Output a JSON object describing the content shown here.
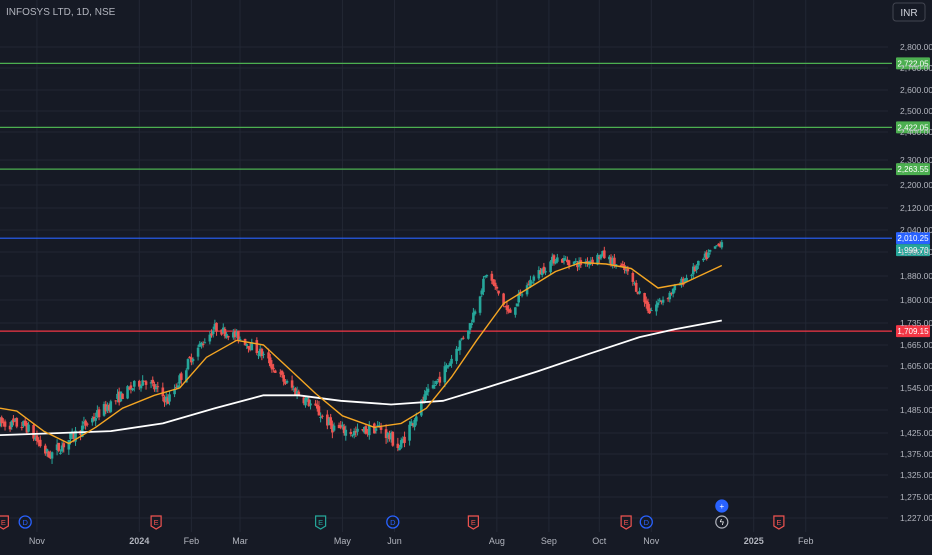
{
  "header": {
    "title": "INFOSYS LTD, 1D, NSE"
  },
  "currency_button": {
    "label": "INR"
  },
  "colors": {
    "background": "#161a25",
    "grid": "#222734",
    "text": "#b2b5be",
    "candle_up": "#26a69a",
    "candle_down": "#ef5350",
    "ma_fast": "#f5a623",
    "ma_slow": "#ffffff",
    "green_line": "#4caf50",
    "blue_line": "#2962ff",
    "red_line": "#f23645",
    "earnings": "#ef5350",
    "dividend": "#2962ff",
    "split": "#26a69a"
  },
  "chart_data": {
    "type": "candlestick",
    "title": "INFOSYS LTD, 1D, NSE",
    "ylim": [
      1200,
      2880
    ],
    "y_ticks": [
      {
        "value": 2800,
        "label": "2,800.00"
      },
      {
        "value": 2700,
        "label": "2,700.00"
      },
      {
        "value": 2600,
        "label": "2,600.00"
      },
      {
        "value": 2500,
        "label": "2,500.00"
      },
      {
        "value": 2400,
        "label": "2,400.00"
      },
      {
        "value": 2300,
        "label": "2,300.00"
      },
      {
        "value": 2200,
        "label": "2,200.00"
      },
      {
        "value": 2120,
        "label": "2,120.00"
      },
      {
        "value": 2040,
        "label": "2,040.00"
      },
      {
        "value": 1960,
        "label": "1,960.00"
      },
      {
        "value": 1880,
        "label": "1,880.00"
      },
      {
        "value": 1800,
        "label": "1,800.00"
      },
      {
        "value": 1735,
        "label": "1,735.00"
      },
      {
        "value": 1665,
        "label": "1,665.00"
      },
      {
        "value": 1605,
        "label": "1,605.00"
      },
      {
        "value": 1545,
        "label": "1,545.00"
      },
      {
        "value": 1485,
        "label": "1,485.00"
      },
      {
        "value": 1425,
        "label": "1,425.00"
      },
      {
        "value": 1375,
        "label": "1,375.00"
      },
      {
        "value": 1325,
        "label": "1,325.00"
      },
      {
        "value": 1275,
        "label": "1,275.00"
      },
      {
        "value": 1227,
        "label": "1,227.00"
      }
    ],
    "x_ticks": [
      {
        "date": "2023-11-01",
        "label": "Nov"
      },
      {
        "date": "2024-01-01",
        "label": "2024"
      },
      {
        "date": "2024-02-01",
        "label": "Feb"
      },
      {
        "date": "2024-03-01",
        "label": "Mar"
      },
      {
        "date": "2024-05-01",
        "label": "May"
      },
      {
        "date": "2024-06-01",
        "label": "Jun"
      },
      {
        "date": "2024-08-01",
        "label": "Aug"
      },
      {
        "date": "2024-09-01",
        "label": "Sep"
      },
      {
        "date": "2024-10-01",
        "label": "Oct"
      },
      {
        "date": "2024-11-01",
        "label": "Nov"
      },
      {
        "date": "2025-01-01",
        "label": "2025"
      },
      {
        "date": "2025-02-01",
        "label": "Feb"
      }
    ],
    "x_range": [
      "2023-10-10",
      "2025-03-22"
    ],
    "anchors": [
      [
        "2023-10-10",
        1450
      ],
      [
        "2023-10-25",
        1445
      ],
      [
        "2023-11-08",
        1370
      ],
      [
        "2023-11-22",
        1415
      ],
      [
        "2023-12-06",
        1470
      ],
      [
        "2023-12-20",
        1520
      ],
      [
        "2024-01-04",
        1570
      ],
      [
        "2024-01-18",
        1510
      ],
      [
        "2024-02-01",
        1630
      ],
      [
        "2024-02-15",
        1720
      ],
      [
        "2024-02-29",
        1690
      ],
      [
        "2024-03-14",
        1640
      ],
      [
        "2024-03-28",
        1560
      ],
      [
        "2024-04-11",
        1505
      ],
      [
        "2024-04-25",
        1440
      ],
      [
        "2024-05-09",
        1425
      ],
      [
        "2024-05-23",
        1440
      ],
      [
        "2024-06-04",
        1390
      ],
      [
        "2024-06-18",
        1510
      ],
      [
        "2024-07-02",
        1600
      ],
      [
        "2024-07-16",
        1730
      ],
      [
        "2024-07-26",
        1890
      ],
      [
        "2024-08-08",
        1760
      ],
      [
        "2024-08-22",
        1870
      ],
      [
        "2024-09-05",
        1940
      ],
      [
        "2024-09-19",
        1920
      ],
      [
        "2024-10-03",
        1950
      ],
      [
        "2024-10-17",
        1895
      ],
      [
        "2024-10-31",
        1770
      ],
      [
        "2024-11-14",
        1830
      ],
      [
        "2024-11-28",
        1910
      ],
      [
        "2024-12-13",
        1999.7
      ]
    ],
    "ma_fast_anchors": [
      [
        "2023-10-10",
        1490
      ],
      [
        "2023-10-20",
        1482
      ],
      [
        "2023-11-05",
        1430
      ],
      [
        "2023-11-20",
        1400
      ],
      [
        "2023-12-06",
        1440
      ],
      [
        "2023-12-22",
        1490
      ],
      [
        "2024-01-10",
        1525
      ],
      [
        "2024-01-25",
        1545
      ],
      [
        "2024-02-10",
        1630
      ],
      [
        "2024-02-28",
        1680
      ],
      [
        "2024-03-15",
        1665
      ],
      [
        "2024-04-01",
        1590
      ],
      [
        "2024-04-15",
        1530
      ],
      [
        "2024-05-01",
        1470
      ],
      [
        "2024-05-20",
        1440
      ],
      [
        "2024-06-05",
        1450
      ],
      [
        "2024-06-20",
        1490
      ],
      [
        "2024-07-05",
        1575
      ],
      [
        "2024-07-20",
        1680
      ],
      [
        "2024-08-05",
        1790
      ],
      [
        "2024-08-20",
        1840
      ],
      [
        "2024-09-05",
        1895
      ],
      [
        "2024-09-20",
        1925
      ],
      [
        "2024-10-05",
        1920
      ],
      [
        "2024-10-20",
        1905
      ],
      [
        "2024-11-05",
        1840
      ],
      [
        "2024-11-20",
        1855
      ],
      [
        "2024-12-13",
        1915
      ]
    ],
    "ma_slow_anchors": [
      [
        "2023-10-10",
        1420
      ],
      [
        "2023-11-15",
        1425
      ],
      [
        "2023-12-15",
        1430
      ],
      [
        "2024-01-15",
        1450
      ],
      [
        "2024-02-15",
        1490
      ],
      [
        "2024-03-15",
        1525
      ],
      [
        "2024-04-05",
        1525
      ],
      [
        "2024-04-30",
        1510
      ],
      [
        "2024-05-30",
        1500
      ],
      [
        "2024-06-30",
        1510
      ],
      [
        "2024-07-25",
        1545
      ],
      [
        "2024-08-25",
        1590
      ],
      [
        "2024-09-25",
        1640
      ],
      [
        "2024-10-25",
        1690
      ],
      [
        "2024-11-15",
        1715
      ],
      [
        "2024-12-13",
        1742
      ]
    ],
    "horizontal_levels": [
      {
        "value": 2722.05,
        "label": "2,722.05",
        "color": "#4caf50"
      },
      {
        "value": 2422.05,
        "label": "2,422.05",
        "color": "#4caf50"
      },
      {
        "value": 2263.55,
        "label": "2,263.55",
        "color": "#4caf50"
      },
      {
        "value": 2010.25,
        "label": "2,010.25",
        "color": "#2962ff"
      },
      {
        "value": 1709.15,
        "label": "1,709.15",
        "color": "#f23645"
      }
    ],
    "last_price": {
      "value": 1999.7,
      "label": "1,999.70",
      "color": "#26a69a"
    },
    "events": [
      {
        "date": "2023-10-12",
        "type": "earnings",
        "label": "E"
      },
      {
        "date": "2023-10-25",
        "type": "dividend",
        "label": "D"
      },
      {
        "date": "2024-01-11",
        "type": "earnings",
        "label": "E"
      },
      {
        "date": "2024-04-18",
        "type": "split",
        "label": "E"
      },
      {
        "date": "2024-05-31",
        "type": "dividend",
        "label": "D"
      },
      {
        "date": "2024-07-18",
        "type": "earnings",
        "label": "E"
      },
      {
        "date": "2024-10-17",
        "type": "earnings",
        "label": "E"
      },
      {
        "date": "2024-10-29",
        "type": "dividend",
        "label": "D"
      },
      {
        "date": "2025-01-16",
        "type": "earnings",
        "label": "E"
      }
    ],
    "upcoming_icons": [
      {
        "date": "2024-12-13",
        "name": "plus-event-icon",
        "glyph": "+"
      },
      {
        "date": "2024-12-13",
        "name": "lightning-event-icon",
        "glyph": "ϟ"
      }
    ]
  }
}
